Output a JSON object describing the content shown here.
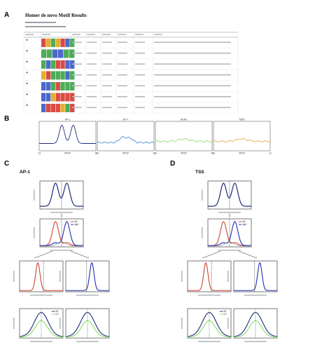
{
  "panels": {
    "a": {
      "letter": "A",
      "title": "Homer de novo Motif Results",
      "subtitle_lines": [],
      "columns": [],
      "rows": []
    },
    "b": {
      "letter": "B",
      "ylabel": "",
      "xtick_center": "MTEP",
      "xtick_edges": [
        "-1k",
        "1k"
      ],
      "charts": [
        {
          "title": "AP-1",
          "color": "#1f2a7a",
          "shape": "bimodal"
        },
        {
          "title": "NF-Y",
          "color": "#4a90d9",
          "shape": "bump"
        },
        {
          "title": "RUNX",
          "color": "#8fdc6a",
          "shape": "flat"
        },
        {
          "title": "TEAD",
          "color": "#e8a54b",
          "shape": "flat"
        }
      ]
    },
    "c": {
      "letter": "C",
      "title": "AP-1",
      "legend1": [
        "left",
        "right"
      ],
      "legend2": [
        "WT",
        "KO"
      ]
    },
    "d": {
      "letter": "D",
      "title": "TSS",
      "legend1": [
        "left",
        "right"
      ],
      "legend2": [
        "WT",
        "KO"
      ]
    }
  }
}
